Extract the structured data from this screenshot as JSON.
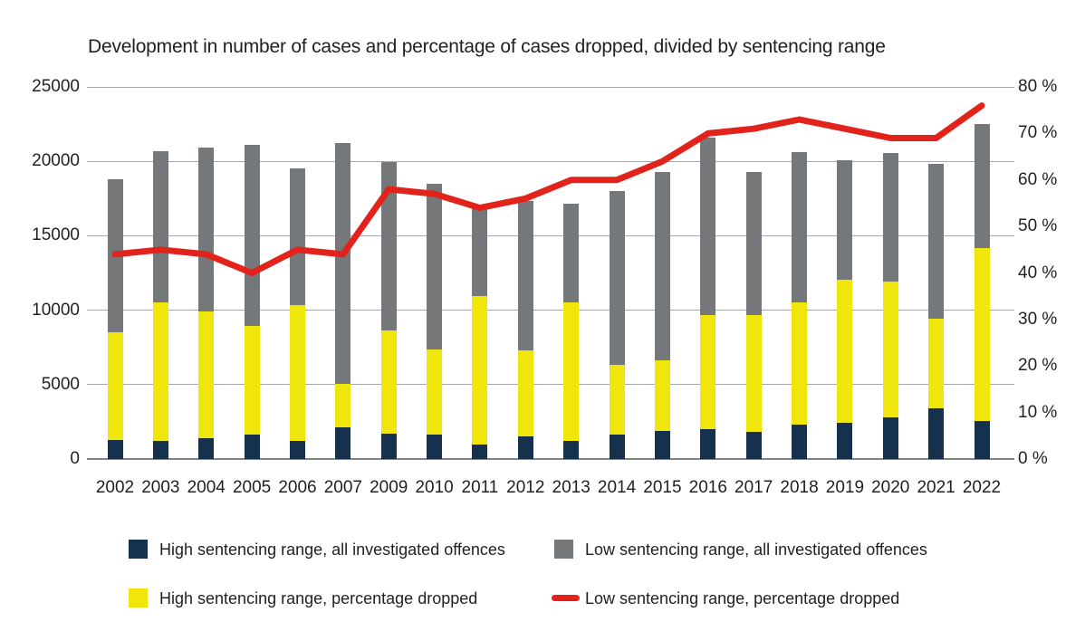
{
  "title": "Development in number of cases and percentage of cases dropped, divided by sentencing range",
  "colors": {
    "high_all": "#16314e",
    "high_dropped": "#f0e60b",
    "low_all": "#75787b",
    "low_dropped_line": "#e2231b",
    "gridline": "#a6a8ab",
    "axis_line": "#808285",
    "text": "#231f20"
  },
  "left_axis": {
    "ticks": [
      {
        "label": "25000",
        "value": 25000
      },
      {
        "label": "20000",
        "value": 20000
      },
      {
        "label": "15000",
        "value": 15000
      },
      {
        "label": "10000",
        "value": 10000
      },
      {
        "label": "5000",
        "value": 5000
      },
      {
        "label": "0",
        "value": 0
      }
    ]
  },
  "right_axis": {
    "ticks": [
      {
        "label": "80 %",
        "value": 80
      },
      {
        "label": "70 %",
        "value": 70
      },
      {
        "label": "60 %",
        "value": 60
      },
      {
        "label": "50 %",
        "value": 50
      },
      {
        "label": "40 %",
        "value": 40
      },
      {
        "label": "30 %",
        "value": 30
      },
      {
        "label": "20 %",
        "value": 20
      },
      {
        "label": "10 %",
        "value": 10
      },
      {
        "label": "0 %",
        "value": 0
      }
    ]
  },
  "legend": [
    {
      "label": "High sentencing range, all investigated offences",
      "swatch": "square",
      "color_key": "high_all"
    },
    {
      "label": "Low sentencing range, all investigated offences",
      "swatch": "square",
      "color_key": "low_all"
    },
    {
      "label": "High sentencing range, percentage dropped",
      "swatch": "square",
      "color_key": "high_dropped"
    },
    {
      "label": "Low sentencing range, percentage dropped",
      "swatch": "line",
      "color_key": "low_dropped_line"
    }
  ],
  "chart_data": {
    "type": "bar",
    "subtype": "stacked-bars-with-line",
    "categories": [
      "2002",
      "2003",
      "2004",
      "2005",
      "2006",
      "2007",
      "2009",
      "2010",
      "2011",
      "2012",
      "2013",
      "2014",
      "2015",
      "2016",
      "2017",
      "2018",
      "2019",
      "2020",
      "2021",
      "2022"
    ],
    "left_ylim": [
      0,
      25000
    ],
    "right_ylim": [
      0,
      80
    ],
    "grid": true,
    "legend_position": "bottom",
    "series": [
      {
        "name": "High sentencing range, all investigated offences",
        "role": "bar-segment-bottom",
        "axis": "left",
        "color_key": "high_all",
        "values": [
          1300,
          1200,
          1400,
          1650,
          1200,
          2150,
          1700,
          1650,
          1000,
          1500,
          1200,
          1650,
          1900,
          2000,
          1850,
          2300,
          2450,
          2800,
          3400,
          2550
        ]
      },
      {
        "name": "High sentencing range, percentage dropped",
        "role": "bar-segment-middle",
        "axis": "left",
        "color_key": "high_dropped",
        "values": [
          7200,
          9350,
          8500,
          7300,
          9150,
          2900,
          6950,
          5700,
          9950,
          5800,
          9300,
          4650,
          4700,
          7650,
          7800,
          8200,
          9600,
          9100,
          6000,
          11600
        ]
      },
      {
        "name": "Low sentencing range, all investigated offences",
        "role": "bar-segment-top",
        "axis": "left",
        "color_key": "low_all",
        "values": [
          10300,
          10150,
          11050,
          12150,
          9200,
          16200,
          11300,
          11150,
          6100,
          10050,
          6650,
          11700,
          12700,
          11950,
          9650,
          10150,
          8050,
          8650,
          10450,
          8350
        ]
      },
      {
        "name": "Low sentencing range, percentage dropped",
        "role": "line",
        "axis": "right",
        "color_key": "low_dropped_line",
        "values": [
          44,
          45,
          44,
          40,
          45,
          44,
          58,
          57,
          54,
          56,
          60,
          60,
          64,
          70,
          71,
          73,
          71,
          69,
          69,
          76
        ]
      }
    ],
    "bar_totals": [
      18800,
      20700,
      20950,
      21100,
      19550,
      21250,
      19950,
      18500,
      17050,
      17350,
      17150,
      18000,
      19300,
      21600,
      19300,
      20650,
      20100,
      20550,
      19850,
      22500
    ]
  }
}
